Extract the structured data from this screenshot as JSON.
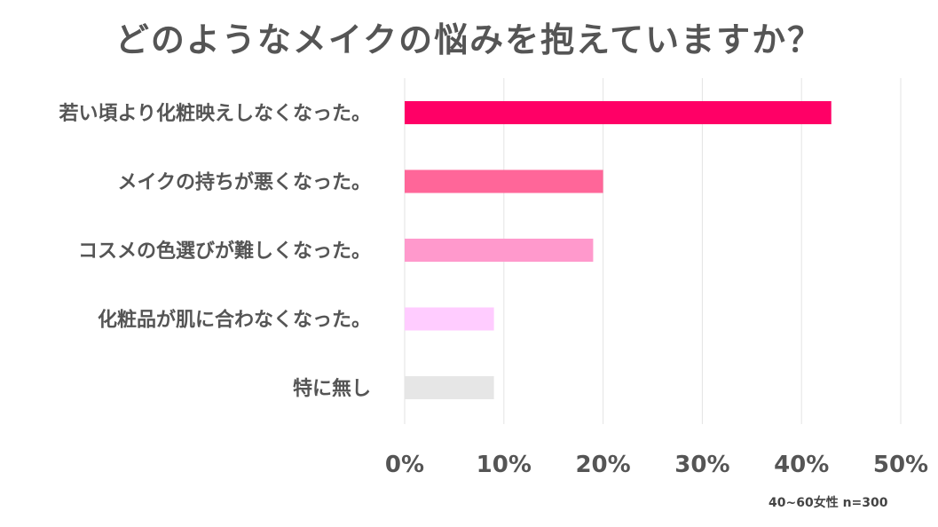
{
  "chart_data": {
    "type": "bar",
    "orientation": "horizontal",
    "title": "どのようなメイクの悩みを抱えていますか？",
    "categories": [
      "若い頃より化粧映えしなくなった。",
      "メイクの持ちが悪くなった。",
      "コスメの色選びが難しくなった。",
      "化粧品が肌に合わなくなった。",
      "特に無し"
    ],
    "values": [
      43,
      20,
      19,
      9,
      9
    ],
    "bar_colors": [
      "#FF0066",
      "#FF6699",
      "#FF99CC",
      "#FFCCFF",
      "#E6E6E6"
    ],
    "xlim": [
      0,
      50
    ],
    "xticks": [
      0,
      10,
      20,
      30,
      40,
      50
    ],
    "xtick_labels": [
      "0%",
      "10%",
      "20%",
      "30%",
      "40%",
      "50%"
    ],
    "grid": true,
    "legend": "none",
    "note": "40~60女性 n=300"
  }
}
